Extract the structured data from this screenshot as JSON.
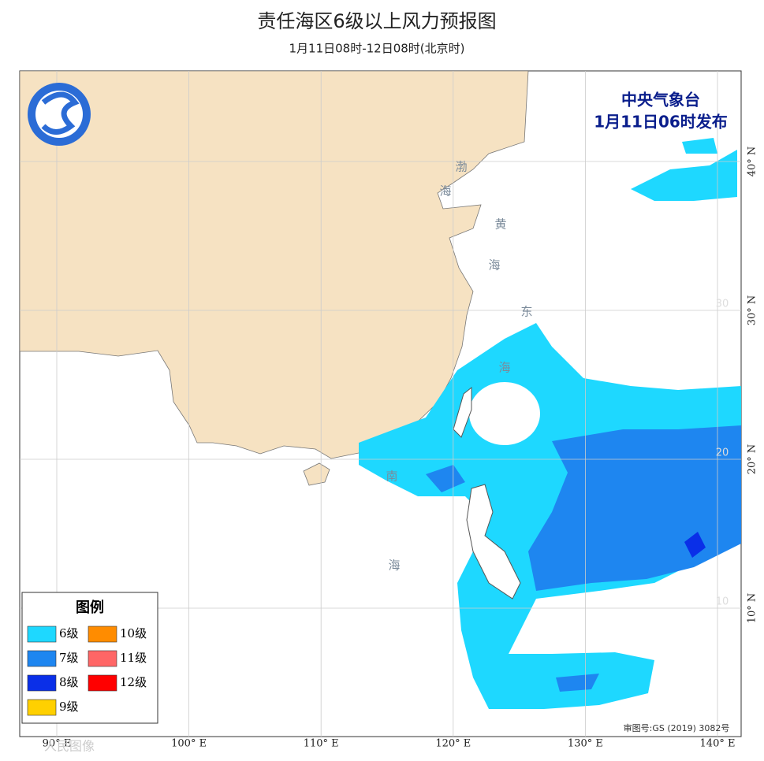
{
  "header": {
    "title": "责任海区6级以上风力预报图",
    "subtitle": "1月11日08时-12日08时(北京时)"
  },
  "issuer": {
    "agency": "中央气象台",
    "issued": "1月11日06时发布"
  },
  "sea_labels": [
    "渤",
    "海",
    "黄",
    "海",
    "东",
    "海",
    "南",
    "海"
  ],
  "graticule": {
    "lon": [
      {
        "value": 90,
        "label": "90° E"
      },
      {
        "value": 100,
        "label": "100° E"
      },
      {
        "value": 110,
        "label": "110° E"
      },
      {
        "value": 120,
        "label": "120° E"
      },
      {
        "value": 130,
        "label": "130° E"
      },
      {
        "value": 140,
        "label": "140° E"
      }
    ],
    "lat": [
      {
        "value": 40,
        "label": "40° N"
      },
      {
        "value": 30,
        "label": "30° N"
      },
      {
        "value": 20,
        "label": "20° N"
      },
      {
        "value": 10,
        "label": "10° N"
      }
    ],
    "inner_lat": [
      30,
      20,
      10
    ]
  },
  "legend": {
    "title": "图例",
    "items": [
      {
        "label": "6级",
        "color": "#1ed8ff"
      },
      {
        "label": "7级",
        "color": "#1e86f0"
      },
      {
        "label": "8级",
        "color": "#0a2fe8"
      },
      {
        "label": "9级",
        "color": "#ffd000"
      },
      {
        "label": "10级",
        "color": "#ff8c00"
      },
      {
        "label": "11级",
        "color": "#ff6666"
      },
      {
        "label": "12级",
        "color": "#ff0000"
      }
    ]
  },
  "approval": "审图号:GS (2019) 3082号",
  "watermark": "人民图像"
}
